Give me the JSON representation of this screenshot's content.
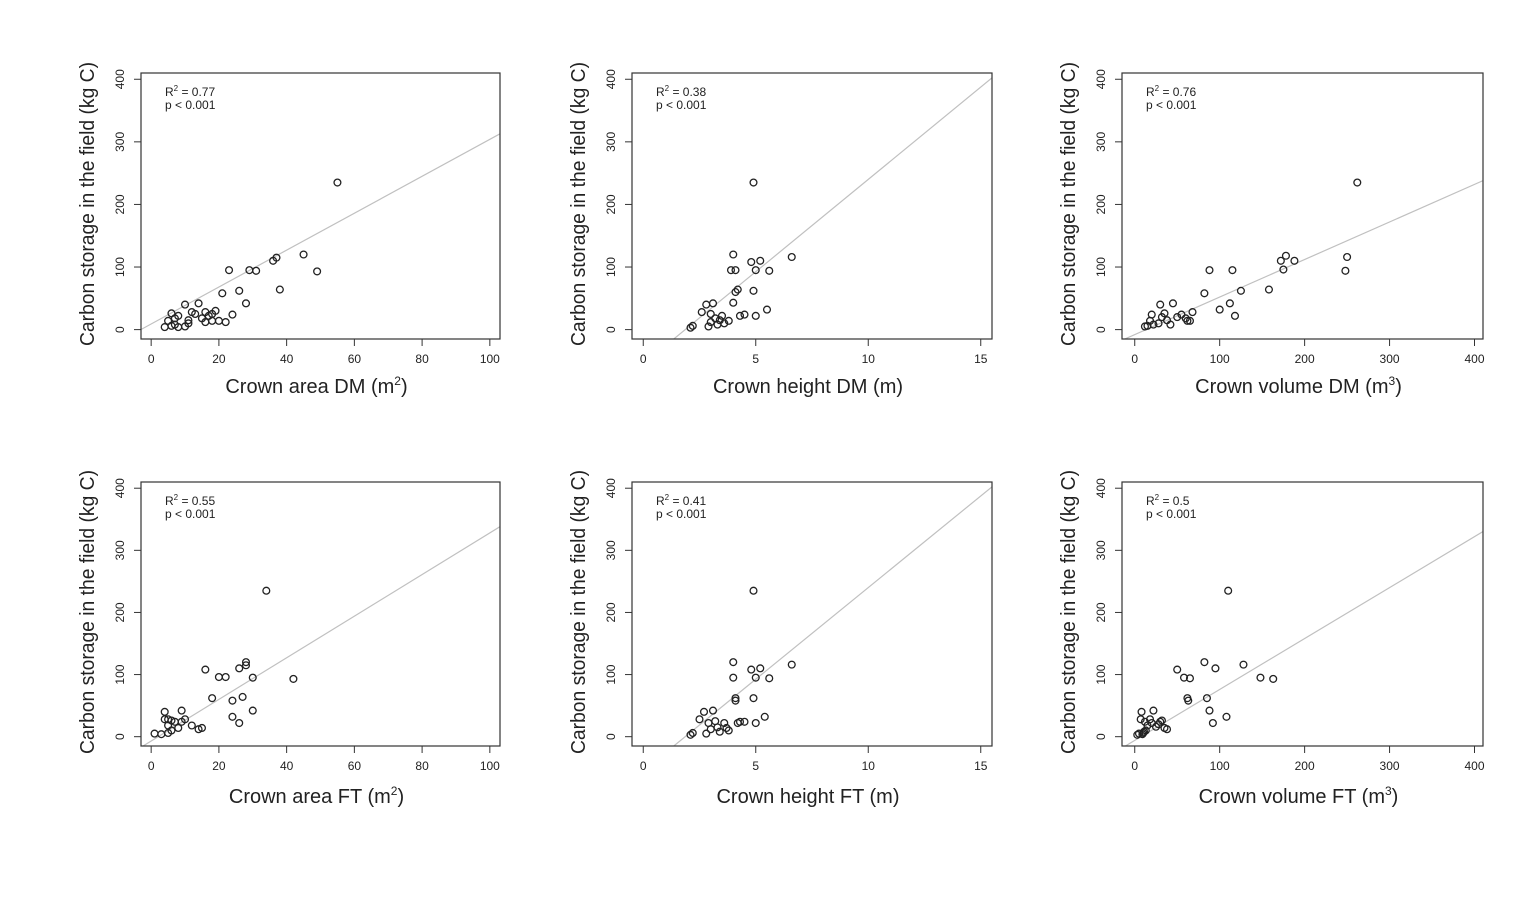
{
  "colors": {
    "axis": "#333333",
    "fit_line": "#c0c0c0",
    "point": "#222222",
    "background": "#ffffff"
  },
  "chart_data": [
    {
      "type": "scatter",
      "title": "",
      "xlabel": "Crown area DM (m2)",
      "xlabel_main": "Crown area DM (m",
      "xlabel_sup": "2",
      "xlabel_tail": ")",
      "ylabel": "Carbon storage in the field (kg C)",
      "xlim": [
        -3,
        103
      ],
      "ylim": [
        -15,
        410
      ],
      "xticks": [
        0,
        20,
        40,
        60,
        80,
        100
      ],
      "yticks": [
        0,
        100,
        200,
        300,
        400
      ],
      "stat_r2": "R",
      "stat_r2_sup": "2",
      "stat_r2_value": " = 0.77",
      "stat_p": "p < 0.001",
      "fit": {
        "slope": 2.95,
        "intercept": 9
      },
      "x": [
        4,
        5,
        6,
        6,
        7,
        7,
        8,
        8,
        10,
        10,
        11,
        11,
        12,
        13,
        14,
        15,
        16,
        16,
        17,
        18,
        18,
        19,
        20,
        21,
        22,
        23,
        24,
        26,
        28,
        29,
        31,
        36,
        37,
        38,
        45,
        49,
        55
      ],
      "y": [
        4,
        14,
        26,
        6,
        18,
        8,
        22,
        4,
        5,
        40,
        10,
        15,
        28,
        25,
        42,
        18,
        28,
        12,
        22,
        14,
        25,
        30,
        14,
        58,
        12,
        95,
        24,
        62,
        42,
        95,
        94,
        110,
        115,
        64,
        120,
        93,
        235
      ]
    },
    {
      "type": "scatter",
      "title": "",
      "xlabel": "Crown height  DM (m)",
      "xlabel_main": "Crown height  DM (m)",
      "xlabel_sup": "",
      "xlabel_tail": "",
      "ylabel": "Carbon storage in the field (kg C)",
      "xlim": [
        -0.5,
        15.5
      ],
      "ylim": [
        -15,
        410
      ],
      "xticks": [
        0,
        5,
        10,
        15
      ],
      "yticks": [
        0,
        100,
        200,
        300,
        400
      ],
      "stat_r2": "R",
      "stat_r2_sup": "2",
      "stat_r2_value": " = 0.38",
      "stat_p": "p < 0.001",
      "fit": {
        "slope": 29.5,
        "intercept": -55
      },
      "x": [
        2.1,
        2.2,
        2.6,
        2.8,
        2.9,
        3.0,
        3.0,
        3.1,
        3.2,
        3.3,
        3.4,
        3.5,
        3.6,
        3.8,
        3.9,
        4.0,
        4.0,
        4.1,
        4.1,
        4.2,
        4.3,
        4.5,
        4.8,
        4.9,
        5.0,
        5.0,
        5.2,
        5.5,
        5.6,
        6.6,
        4.9
      ],
      "y": [
        3,
        6,
        28,
        40,
        5,
        12,
        25,
        42,
        18,
        8,
        15,
        22,
        10,
        14,
        95,
        43,
        120,
        95,
        60,
        64,
        22,
        24,
        108,
        62,
        95,
        22,
        110,
        32,
        94,
        116,
        235
      ]
    },
    {
      "type": "scatter",
      "title": "",
      "xlabel": "Crown volume DM (m3)",
      "xlabel_main": "Crown volume DM (m",
      "xlabel_sup": "3",
      "xlabel_tail": ")",
      "ylabel": "Carbon storage in the field (kg C)",
      "xlim": [
        -15,
        410
      ],
      "ylim": [
        -15,
        410
      ],
      "xticks": [
        0,
        100,
        200,
        300,
        400
      ],
      "yticks": [
        0,
        100,
        200,
        300,
        400
      ],
      "stat_r2": "R",
      "stat_r2_sup": "2",
      "stat_r2_value": " = 0.76",
      "stat_p": "p < 0.001",
      "fit": {
        "slope": 0.6,
        "intercept": -8
      },
      "x": [
        12,
        15,
        18,
        20,
        22,
        28,
        30,
        32,
        35,
        38,
        42,
        45,
        50,
        55,
        60,
        62,
        65,
        68,
        82,
        88,
        100,
        112,
        115,
        118,
        125,
        158,
        172,
        175,
        178,
        188,
        248,
        250,
        262
      ],
      "y": [
        5,
        6,
        14,
        24,
        8,
        10,
        40,
        20,
        26,
        15,
        8,
        42,
        20,
        24,
        18,
        14,
        14,
        28,
        58,
        95,
        32,
        42,
        95,
        22,
        62,
        64,
        110,
        96,
        118,
        110,
        94,
        116,
        235
      ]
    },
    {
      "type": "scatter",
      "title": "",
      "xlabel": "Crown area FT (m2)",
      "xlabel_main": "Crown area FT (m",
      "xlabel_sup": "2",
      "xlabel_tail": ")",
      "ylabel": "Carbon storage in the field (kg C)",
      "xlim": [
        -3,
        103
      ],
      "ylim": [
        -15,
        410
      ],
      "xticks": [
        0,
        20,
        40,
        60,
        80,
        100
      ],
      "yticks": [
        0,
        100,
        200,
        300,
        400
      ],
      "stat_r2": "R",
      "stat_r2_sup": "2",
      "stat_r2_value": " = 0.55",
      "stat_p": "p < 0.001",
      "fit": {
        "slope": 3.35,
        "intercept": -7
      },
      "x": [
        1,
        3,
        4,
        4,
        5,
        5,
        5,
        6,
        6,
        7,
        8,
        9,
        9,
        10,
        12,
        14,
        15,
        16,
        18,
        20,
        22,
        24,
        24,
        26,
        26,
        27,
        28,
        28,
        30,
        30,
        34,
        42
      ],
      "y": [
        5,
        4,
        40,
        28,
        6,
        18,
        28,
        10,
        26,
        24,
        14,
        42,
        24,
        28,
        18,
        12,
        14,
        108,
        62,
        96,
        96,
        58,
        32,
        110,
        22,
        64,
        115,
        120,
        42,
        95,
        235,
        93
      ]
    },
    {
      "type": "scatter",
      "title": "",
      "xlabel": "Crown height FT (m)",
      "xlabel_main": "Crown height FT (m)",
      "xlabel_sup": "",
      "xlabel_tail": "",
      "ylabel": "Carbon storage in the field (kg C)",
      "xlim": [
        -0.5,
        15.5
      ],
      "ylim": [
        -15,
        410
      ],
      "xticks": [
        0,
        5,
        10,
        15
      ],
      "yticks": [
        0,
        100,
        200,
        300,
        400
      ],
      "stat_r2": "R",
      "stat_r2_sup": "2",
      "stat_r2_value": " = 0.41",
      "stat_p": "p < 0.001",
      "fit": {
        "slope": 29.5,
        "intercept": -55
      },
      "x": [
        2.1,
        2.2,
        2.5,
        2.7,
        2.8,
        2.9,
        3.0,
        3.1,
        3.2,
        3.3,
        3.4,
        3.6,
        3.7,
        3.8,
        4.0,
        4.0,
        4.1,
        4.1,
        4.2,
        4.3,
        4.5,
        4.8,
        4.9,
        5.0,
        5.0,
        5.2,
        5.4,
        5.6,
        6.6,
        4.9
      ],
      "y": [
        3,
        6,
        28,
        40,
        5,
        22,
        12,
        42,
        25,
        15,
        8,
        22,
        14,
        10,
        120,
        95,
        62,
        58,
        22,
        24,
        24,
        108,
        62,
        22,
        95,
        110,
        32,
        94,
        116,
        235
      ]
    },
    {
      "type": "scatter",
      "title": "",
      "xlabel": "Crown volume FT (m3)",
      "xlabel_main": "Crown volume FT (m",
      "xlabel_sup": "3",
      "xlabel_tail": ")",
      "ylabel": "Carbon storage in the field (kg C)",
      "xlim": [
        -15,
        410
      ],
      "ylim": [
        -15,
        410
      ],
      "xticks": [
        0,
        100,
        200,
        300,
        400
      ],
      "yticks": [
        0,
        100,
        200,
        300,
        400
      ],
      "stat_r2": "R",
      "stat_r2_sup": "2",
      "stat_r2_value": " = 0.5",
      "stat_p": "p < 0.001",
      "fit": {
        "slope": 0.82,
        "intercept": -6
      },
      "x": [
        3,
        5,
        7,
        8,
        9,
        10,
        11,
        12,
        13,
        15,
        18,
        20,
        22,
        25,
        28,
        30,
        32,
        35,
        38,
        50,
        58,
        62,
        63,
        65,
        82,
        85,
        88,
        92,
        95,
        108,
        110,
        128,
        148,
        163
      ],
      "y": [
        3,
        5,
        28,
        40,
        4,
        6,
        8,
        24,
        10,
        18,
        28,
        22,
        42,
        16,
        20,
        24,
        26,
        14,
        12,
        108,
        95,
        62,
        58,
        94,
        120,
        62,
        42,
        22,
        110,
        32,
        235,
        116,
        95,
        93
      ]
    }
  ]
}
